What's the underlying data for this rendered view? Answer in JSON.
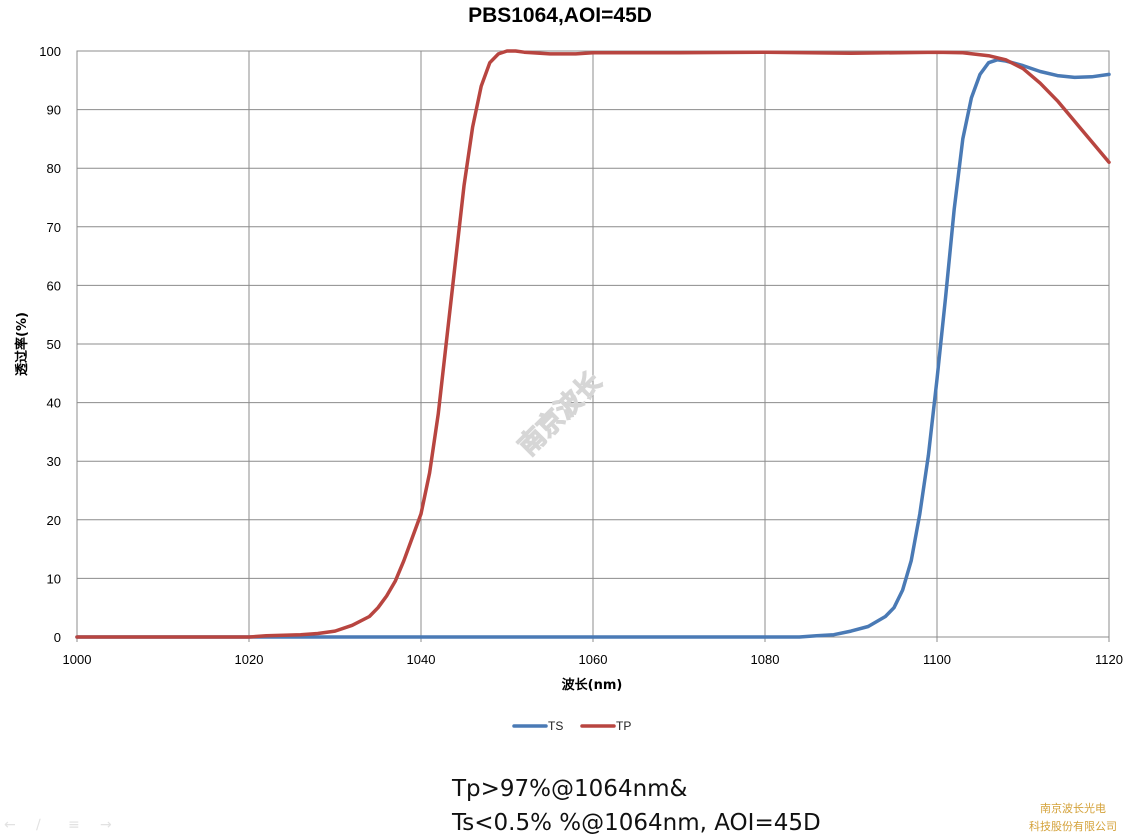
{
  "chart_data": {
    "type": "line",
    "title": "PBS1064,AOI=45D",
    "xlabel": "波长(nm)",
    "ylabel": "透过率(%)",
    "xlim": [
      1000,
      1120
    ],
    "ylim": [
      0,
      100
    ],
    "xticks": [
      1000,
      1020,
      1040,
      1060,
      1080,
      1100,
      1120
    ],
    "yticks": [
      0,
      10,
      20,
      30,
      40,
      50,
      60,
      70,
      80,
      90,
      100
    ],
    "grid": true,
    "legend_position": "bottom",
    "series": [
      {
        "name": "TS",
        "color": "#4a7ab5",
        "x": [
          1000,
          1020,
          1040,
          1060,
          1080,
          1084,
          1086,
          1088,
          1090,
          1092,
          1094,
          1095,
          1096,
          1097,
          1098,
          1099,
          1100,
          1101,
          1102,
          1103,
          1104,
          1105,
          1106,
          1107,
          1108,
          1110,
          1112,
          1114,
          1116,
          1118,
          1120
        ],
        "y": [
          0,
          0,
          0,
          0,
          0,
          0,
          0.2,
          0.4,
          1,
          1.8,
          3.5,
          5,
          8,
          13,
          21,
          31,
          44,
          58,
          73,
          85,
          92,
          96,
          98,
          98.5,
          98.3,
          97.5,
          96.5,
          95.8,
          95.5,
          95.6,
          96
        ]
      },
      {
        "name": "TP",
        "color": "#b84540",
        "x": [
          1000,
          1010,
          1020,
          1022,
          1024,
          1026,
          1028,
          1030,
          1032,
          1034,
          1035,
          1036,
          1037,
          1038,
          1039,
          1040,
          1041,
          1042,
          1043,
          1044,
          1045,
          1046,
          1047,
          1048,
          1049,
          1050,
          1051,
          1052,
          1055,
          1058,
          1060,
          1070,
          1080,
          1090,
          1100,
          1103,
          1106,
          1108,
          1110,
          1112,
          1114,
          1116,
          1118,
          1120
        ],
        "y": [
          0,
          0,
          0,
          0.2,
          0.3,
          0.4,
          0.6,
          1,
          2,
          3.5,
          5,
          7,
          9.5,
          13,
          17,
          21,
          28,
          38,
          51,
          64,
          77,
          87,
          94,
          98,
          99.5,
          100,
          100,
          99.8,
          99.5,
          99.5,
          99.7,
          99.7,
          99.8,
          99.6,
          99.8,
          99.7,
          99.2,
          98.5,
          97,
          94.5,
          91.5,
          88,
          84.5,
          81
        ]
      }
    ]
  },
  "watermark": "南京波长",
  "spec_lines": [
    "Tp>97%@1064nm&",
    "Ts<0.5% %@1064nm, AOI=45D"
  ],
  "company_lines": [
    "南京波长光电",
    "科技股份有限公司"
  ]
}
